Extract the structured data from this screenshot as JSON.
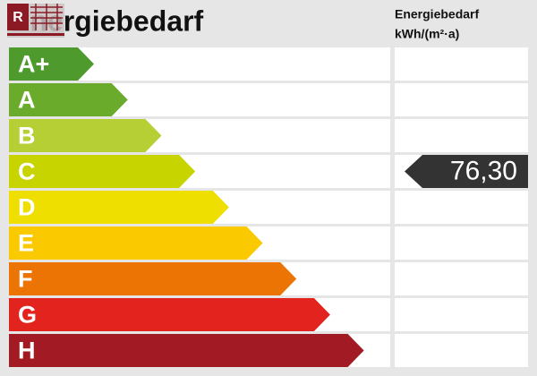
{
  "title": "Energiebedarf",
  "column_header": [
    "Energiebedarf",
    "kWh/(m²·a)"
  ],
  "rows": [
    {
      "label": "A+",
      "color": "#4e9a2c"
    },
    {
      "label": "A",
      "color": "#6aab2c"
    },
    {
      "label": "B",
      "color": "#b5cf35"
    },
    {
      "label": "C",
      "color": "#c8d400",
      "value": "76,30"
    },
    {
      "label": "D",
      "color": "#efdf00"
    },
    {
      "label": "E",
      "color": "#fbc900"
    },
    {
      "label": "F",
      "color": "#ec7404"
    },
    {
      "label": "G",
      "color": "#e3231e"
    },
    {
      "label": "H",
      "color": "#a21b24"
    }
  ]
}
